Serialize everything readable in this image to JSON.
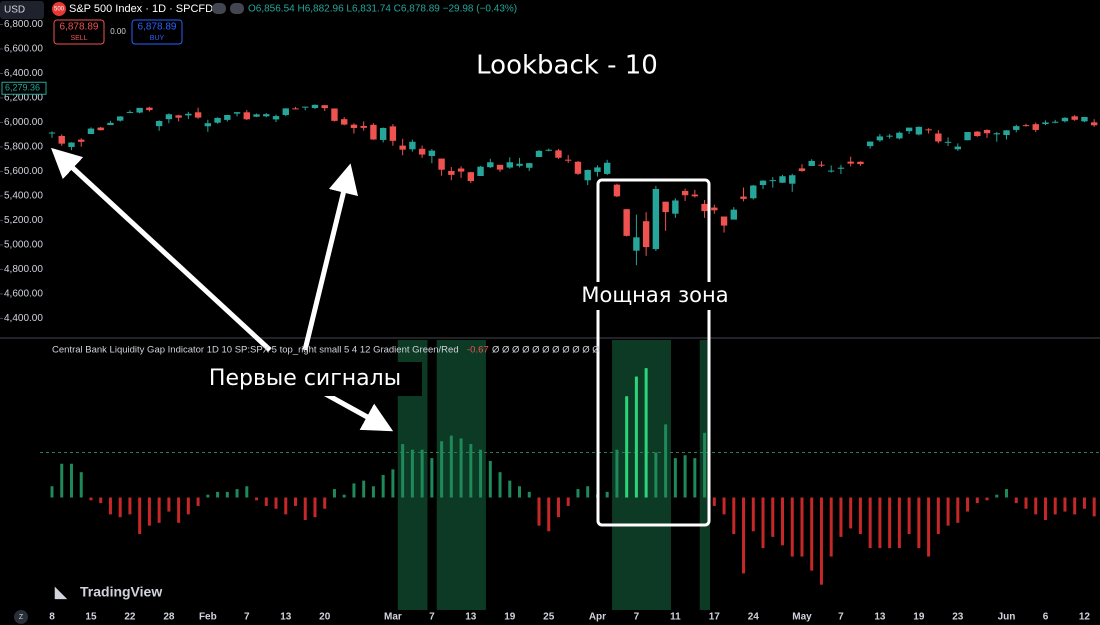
{
  "header": {
    "currency": "USD",
    "badge": "500",
    "symbol": "S&P 500 Index · 1D · SPCFD",
    "ohlc": "O6,856.54 H6,882.96 L6,831.74 C6,878.89 −29.98 (−0.43%)",
    "sell_price": "6,878.89",
    "sell_label": "SELL",
    "spread": "0.00",
    "buy_price": "6,878.89",
    "buy_label": "BUY",
    "logo": "TradingView",
    "corner": "Z"
  },
  "chart_data": [
    {
      "type": "candlestick",
      "title": "Lookback - 10",
      "up_color": "#26a69a",
      "down_color": "#ef5350",
      "ylim": [
        4240,
        7000
      ],
      "yticks": [
        {
          "value": 6800,
          "label": "6,800.00"
        },
        {
          "value": 6600,
          "label": "6,600.00"
        },
        {
          "value": 6400,
          "label": "6,400.00"
        },
        {
          "value": 6200,
          "label": "6,200.00"
        },
        {
          "value": 6000,
          "label": "6,000.00"
        },
        {
          "value": 5800,
          "label": "5,800.00"
        },
        {
          "value": 5600,
          "label": "5,600.00"
        },
        {
          "value": 5400,
          "label": "5,400.00"
        },
        {
          "value": 5200,
          "label": "5,200.00"
        },
        {
          "value": 5000,
          "label": "5,000.00"
        },
        {
          "value": 4800,
          "label": "4,800.00"
        },
        {
          "value": 4600,
          "label": "4,600.00"
        },
        {
          "value": 4400,
          "label": "4,400.00"
        }
      ],
      "price_marker": {
        "value": 6279.36,
        "label": "6,279.36"
      },
      "annotations": [
        "Мощная зона",
        "Первые сигналы"
      ],
      "categories": [
        "8",
        null,
        null,
        null,
        "15",
        null,
        null,
        null,
        "22",
        null,
        null,
        null,
        "28",
        null,
        null,
        null,
        "Feb",
        null,
        null,
        null,
        "7",
        null,
        null,
        null,
        "13",
        null,
        null,
        null,
        "20",
        null,
        null,
        null,
        null,
        null,
        null,
        "Mar",
        null,
        null,
        null,
        "7",
        null,
        null,
        null,
        "13",
        null,
        null,
        null,
        "19",
        null,
        null,
        null,
        "25",
        null,
        null,
        null,
        null,
        "Apr",
        null,
        null,
        null,
        "7",
        null,
        null,
        null,
        "11",
        null,
        null,
        null,
        "17",
        null,
        null,
        null,
        "24",
        null,
        null,
        null,
        null,
        "May",
        null,
        null,
        null,
        "7",
        null,
        null,
        null,
        "13",
        null,
        null,
        null,
        "19",
        null,
        null,
        null,
        "23",
        null,
        null,
        null,
        null,
        "Jun",
        null,
        null,
        null,
        "6",
        null,
        null,
        null,
        "12",
        null
      ],
      "candles": [
        [
          5910,
          5927,
          5874,
          5918
        ],
        [
          5890,
          5903,
          5809,
          5827
        ],
        [
          5800,
          5839,
          5774,
          5836
        ],
        [
          5860,
          5871,
          5802,
          5842
        ],
        [
          5906,
          5960,
          5906,
          5950
        ],
        [
          5958,
          5964,
          5935,
          5937
        ],
        [
          5979,
          6014,
          5979,
          5997
        ],
        [
          6015,
          6051,
          6007,
          6049
        ],
        [
          6082,
          6100,
          6076,
          6086
        ],
        [
          6081,
          6119,
          6074,
          6119
        ],
        [
          6121,
          6128,
          6089,
          6101
        ],
        [
          5970,
          6018,
          5932,
          6012
        ],
        [
          6027,
          6074,
          5994,
          6067
        ],
        [
          6058,
          6062,
          6009,
          6039
        ],
        [
          6058,
          6087,
          6028,
          6071
        ],
        [
          6083,
          6120,
          6030,
          6040
        ],
        [
          5969,
          6022,
          5924,
          5994
        ],
        [
          5998,
          6042,
          5990,
          6037
        ],
        [
          6021,
          6062,
          6007,
          6061
        ],
        [
          6072,
          6084,
          6050,
          6084
        ],
        [
          6083,
          6101,
          6020,
          6026
        ],
        [
          6047,
          6073,
          6044,
          6066
        ],
        [
          6050,
          6076,
          6042,
          6068
        ],
        [
          6025,
          6064,
          6003,
          6052
        ],
        [
          6061,
          6116,
          6051,
          6115
        ],
        [
          6115,
          6127,
          6107,
          6114
        ],
        [
          6121,
          6129,
          6100,
          6129
        ],
        [
          6118,
          6147,
          6111,
          6144
        ],
        [
          6141,
          6143,
          6094,
          6117
        ],
        [
          6114,
          6115,
          6008,
          6013
        ],
        [
          6027,
          6044,
          5977,
          5983
        ],
        [
          5982,
          5993,
          5909,
          5955
        ],
        [
          5971,
          6009,
          5933,
          5956
        ],
        [
          5981,
          5994,
          5858,
          5861
        ],
        [
          5857,
          5959,
          5837,
          5955
        ],
        [
          5968,
          5987,
          5810,
          5850
        ],
        [
          5811,
          5866,
          5732,
          5778
        ],
        [
          5781,
          5860,
          5762,
          5842
        ],
        [
          5785,
          5812,
          5711,
          5738
        ],
        [
          5726,
          5783,
          5667,
          5770
        ],
        [
          5705,
          5706,
          5565,
          5614
        ],
        [
          5604,
          5636,
          5528,
          5572
        ],
        [
          5624,
          5642,
          5547,
          5599
        ],
        [
          5594,
          5598,
          5505,
          5522
        ],
        [
          5563,
          5645,
          5563,
          5639
        ],
        [
          5635,
          5704,
          5628,
          5675
        ],
        [
          5654,
          5654,
          5597,
          5615
        ],
        [
          5632,
          5715,
          5622,
          5675
        ],
        [
          5646,
          5711,
          5633,
          5663
        ],
        [
          5630,
          5670,
          5603,
          5668
        ],
        [
          5718,
          5775,
          5718,
          5768
        ],
        [
          5775,
          5787,
          5764,
          5777
        ],
        [
          5772,
          5784,
          5703,
          5712
        ],
        [
          5696,
          5734,
          5670,
          5693
        ],
        [
          5679,
          5685,
          5572,
          5581
        ],
        [
          5528,
          5615,
          5489,
          5612
        ],
        [
          5597,
          5650,
          5558,
          5633
        ],
        [
          5580,
          5695,
          5572,
          5671
        ],
        [
          5492,
          5500,
          5390,
          5397
        ],
        [
          5292,
          5292,
          5069,
          5074
        ],
        [
          4953,
          5247,
          4835,
          5062
        ],
        [
          5194,
          5267,
          4911,
          4982
        ],
        [
          4966,
          5482,
          4950,
          5457
        ],
        [
          5353,
          5353,
          5115,
          5268
        ],
        [
          5255,
          5381,
          5221,
          5363
        ],
        [
          5441,
          5460,
          5359,
          5406
        ],
        [
          5411,
          5450,
          5387,
          5397
        ],
        [
          5335,
          5367,
          5221,
          5276
        ],
        [
          5305,
          5328,
          5255,
          5283
        ],
        [
          5232,
          5232,
          5101,
          5158
        ],
        [
          5207,
          5309,
          5207,
          5288
        ],
        [
          5395,
          5469,
          5356,
          5376
        ],
        [
          5381,
          5489,
          5371,
          5485
        ],
        [
          5489,
          5528,
          5456,
          5525
        ],
        [
          5529,
          5553,
          5468,
          5529
        ],
        [
          5508,
          5572,
          5506,
          5561
        ],
        [
          5500,
          5581,
          5434,
          5569
        ],
        [
          5625,
          5659,
          5598,
          5604
        ],
        [
          5645,
          5700,
          5644,
          5686
        ],
        [
          5655,
          5683,
          5637,
          5650
        ],
        [
          5606,
          5649,
          5591,
          5607
        ],
        [
          5622,
          5654,
          5579,
          5631
        ],
        [
          5680,
          5721,
          5641,
          5664
        ],
        [
          5679,
          5683,
          5645,
          5660
        ],
        [
          5807,
          5845,
          5786,
          5844
        ],
        [
          5854,
          5906,
          5842,
          5886
        ],
        [
          5887,
          5906,
          5868,
          5892
        ],
        [
          5870,
          5925,
          5862,
          5916
        ],
        [
          5929,
          5958,
          5907,
          5958
        ],
        [
          5902,
          5968,
          5895,
          5964
        ],
        [
          5944,
          5953,
          5910,
          5941
        ],
        [
          5910,
          5938,
          5830,
          5845
        ],
        [
          5841,
          5878,
          5807,
          5842
        ],
        [
          5781,
          5829,
          5768,
          5803
        ],
        [
          5855,
          5922,
          5854,
          5922
        ],
        [
          5925,
          5930,
          5883,
          5889
        ],
        [
          5939,
          5944,
          5874,
          5912
        ],
        [
          5903,
          5922,
          5843,
          5912
        ],
        [
          5897,
          5937,
          5861,
          5936
        ],
        [
          5939,
          5982,
          5919,
          5970
        ],
        [
          5978,
          5990,
          5967,
          5971
        ],
        [
          5986,
          5999,
          5921,
          5939
        ],
        [
          5987,
          6017,
          5978,
          6000
        ],
        [
          6005,
          6021,
          5994,
          6006
        ],
        [
          6010,
          6043,
          6000,
          6038
        ],
        [
          6050,
          6060,
          6013,
          6022
        ],
        [
          6009,
          6045,
          6003,
          6045
        ],
        [
          6001,
          6027,
          5964,
          5977
        ]
      ]
    },
    {
      "type": "histogram-indicator",
      "title": "Central Bank Liquidity Gap Indicator 1D 10 SP:SPX 5 top_right small 5 4 12 Gradient Green/Red",
      "value_label": "-0.67",
      "placeholders": "Ø Ø Ø Ø Ø Ø Ø Ø Ø Ø Ø",
      "positive_color": "#1e8a5a",
      "strong_color": "#2ed47a",
      "negative_color": "#c62828",
      "signal_color": "#0c3a25",
      "threshold": 1.6,
      "ylim": [
        -4,
        5.6
      ],
      "values": [
        0.4,
        1.2,
        1.2,
        0.9,
        -0.1,
        -0.2,
        -0.6,
        -0.7,
        -0.6,
        -1.3,
        -1.0,
        -0.9,
        -0.5,
        -0.9,
        -0.6,
        -0.3,
        0.1,
        0.2,
        0.2,
        0.3,
        0.4,
        -0.1,
        -0.3,
        -0.4,
        -0.6,
        -0.3,
        -0.8,
        -0.7,
        -0.4,
        0.3,
        0.1,
        0.5,
        0.6,
        0.4,
        0.8,
        1.0,
        1.9,
        1.7,
        1.7,
        1.4,
        2.0,
        2.2,
        2.1,
        1.9,
        1.7,
        1.3,
        0.9,
        0.6,
        0.4,
        0.2,
        -1.0,
        -1.2,
        -0.7,
        -0.3,
        0.3,
        0.4,
        0.1,
        0.2,
        1.7,
        3.6,
        4.3,
        4.6,
        1.6,
        2.6,
        1.4,
        1.5,
        1.4,
        2.3,
        -0.3,
        -0.6,
        -1.3,
        -2.7,
        -1.2,
        -1.8,
        -1.4,
        -1.7,
        -2.1,
        -2.1,
        -2.6,
        -3.1,
        -2.1,
        -1.4,
        -1.1,
        -1.3,
        -1.8,
        -1.8,
        -1.8,
        -1.8,
        -1.3,
        -1.8,
        -2.1,
        -1.3,
        -1.0,
        -0.9,
        -0.5,
        -0.2,
        -0.1,
        0.1,
        0.3,
        -0.2,
        -0.4,
        -0.6,
        -0.8,
        -0.6,
        -0.5,
        -0.6,
        -0.4,
        -0.67
      ]
    }
  ]
}
